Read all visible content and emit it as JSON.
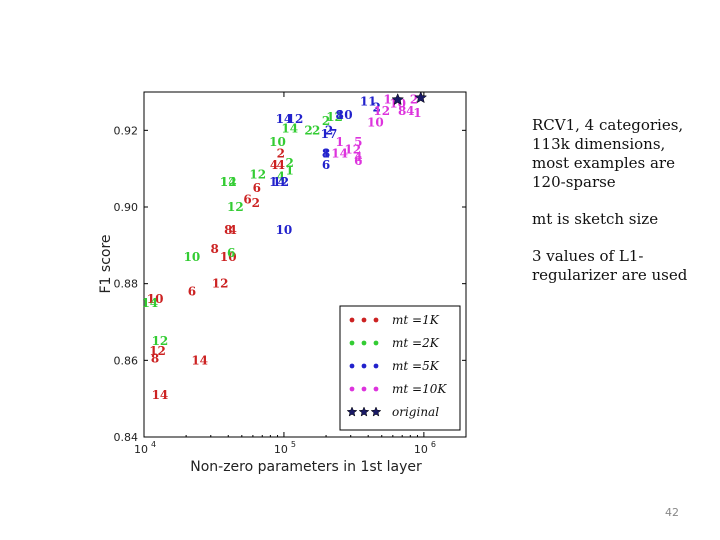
{
  "slide": {
    "notes": [
      "RCV1, 4 categories, 113k dimensions, most examples are 120-sparse",
      "mt is sketch size",
      "3 values of L1-regularizer are used"
    ],
    "page_number": "42"
  },
  "chart_data": {
    "type": "scatter",
    "title": "",
    "xlabel": "Non-zero parameters in 1st layer",
    "ylabel": "F1 score",
    "xscale": "log",
    "xlim": [
      10000,
      2000000
    ],
    "ylim": [
      0.84,
      0.93
    ],
    "x_ticks": [
      {
        "value": 10000,
        "label": "10"
      },
      {
        "value": 100000,
        "label": "10"
      },
      {
        "value": 1000000,
        "label": "10"
      }
    ],
    "x_tick_exponents": [
      "4",
      "5",
      "6"
    ],
    "y_ticks": [
      {
        "value": 0.84,
        "label": "0.84"
      },
      {
        "value": 0.86,
        "label": "0.86"
      },
      {
        "value": 0.88,
        "label": "0.88"
      },
      {
        "value": 0.9,
        "label": "0.90"
      },
      {
        "value": 0.92,
        "label": "0.92"
      }
    ],
    "legend_position": "bottom-right",
    "series": [
      {
        "name": "mt =1K",
        "color": "#cc2222",
        "marker": "dot",
        "points": [
          {
            "x": 12000,
            "y": 0.8605,
            "label": "8"
          },
          {
            "x": 12500,
            "y": 0.8625,
            "label": "12"
          },
          {
            "x": 13000,
            "y": 0.851,
            "label": "14"
          },
          {
            "x": 12000,
            "y": 0.876,
            "label": "10"
          },
          {
            "x": 25000,
            "y": 0.86,
            "label": "14"
          },
          {
            "x": 22000,
            "y": 0.878,
            "label": "6"
          },
          {
            "x": 35000,
            "y": 0.88,
            "label": "12"
          },
          {
            "x": 32000,
            "y": 0.889,
            "label": "8"
          },
          {
            "x": 40000,
            "y": 0.894,
            "label": "8"
          },
          {
            "x": 43000,
            "y": 0.894,
            "label": "4"
          },
          {
            "x": 40000,
            "y": 0.887,
            "label": "10"
          },
          {
            "x": 55000,
            "y": 0.902,
            "label": "6"
          },
          {
            "x": 63000,
            "y": 0.901,
            "label": "2"
          },
          {
            "x": 64000,
            "y": 0.905,
            "label": "6"
          },
          {
            "x": 85000,
            "y": 0.911,
            "label": "4"
          },
          {
            "x": 95000,
            "y": 0.914,
            "label": "2"
          },
          {
            "x": 95000,
            "y": 0.911,
            "label": "4"
          }
        ]
      },
      {
        "name": "mt =2K",
        "color": "#33cc33",
        "marker": "dot",
        "points": [
          {
            "x": 13000,
            "y": 0.865,
            "label": "12"
          },
          {
            "x": 11000,
            "y": 0.875,
            "label": "14"
          },
          {
            "x": 22000,
            "y": 0.887,
            "label": "10"
          },
          {
            "x": 42000,
            "y": 0.888,
            "label": "6"
          },
          {
            "x": 45000,
            "y": 0.9,
            "label": "12"
          },
          {
            "x": 40000,
            "y": 0.9065,
            "label": "12"
          },
          {
            "x": 40000,
            "y": 0.9065,
            "label": "14"
          },
          {
            "x": 65000,
            "y": 0.9085,
            "label": "12"
          },
          {
            "x": 90000,
            "y": 0.917,
            "label": "10"
          },
          {
            "x": 110000,
            "y": 0.9115,
            "label": "2"
          },
          {
            "x": 110000,
            "y": 0.9095,
            "label": "1"
          },
          {
            "x": 95000,
            "y": 0.908,
            "label": "4"
          },
          {
            "x": 110000,
            "y": 0.9205,
            "label": "14"
          },
          {
            "x": 150000,
            "y": 0.92,
            "label": "2"
          },
          {
            "x": 170000,
            "y": 0.92,
            "label": "2"
          },
          {
            "x": 200000,
            "y": 0.9225,
            "label": "2"
          },
          {
            "x": 230000,
            "y": 0.9235,
            "label": "12"
          }
        ]
      },
      {
        "name": "mt =5K",
        "color": "#2222cc",
        "marker": "dot",
        "points": [
          {
            "x": 90000,
            "y": 0.9065,
            "label": "14"
          },
          {
            "x": 95000,
            "y": 0.9065,
            "label": "12"
          },
          {
            "x": 100000,
            "y": 0.894,
            "label": "10"
          },
          {
            "x": 100000,
            "y": 0.923,
            "label": "14"
          },
          {
            "x": 120000,
            "y": 0.923,
            "label": "12"
          },
          {
            "x": 200000,
            "y": 0.914,
            "label": "8"
          },
          {
            "x": 200000,
            "y": 0.914,
            "label": "1"
          },
          {
            "x": 200000,
            "y": 0.911,
            "label": "6"
          },
          {
            "x": 210000,
            "y": 0.919,
            "label": "17"
          },
          {
            "x": 210000,
            "y": 0.92,
            "label": "2"
          },
          {
            "x": 250000,
            "y": 0.924,
            "label": "8"
          },
          {
            "x": 270000,
            "y": 0.924,
            "label": "10"
          },
          {
            "x": 400000,
            "y": 0.9275,
            "label": "11"
          },
          {
            "x": 460000,
            "y": 0.926,
            "label": "2"
          }
        ]
      },
      {
        "name": "mt =10K",
        "color": "#dd33dd",
        "marker": "dot",
        "points": [
          {
            "x": 250000,
            "y": 0.917,
            "label": "1"
          },
          {
            "x": 250000,
            "y": 0.914,
            "label": "14"
          },
          {
            "x": 310000,
            "y": 0.915,
            "label": "12"
          },
          {
            "x": 340000,
            "y": 0.917,
            "label": "5"
          },
          {
            "x": 340000,
            "y": 0.913,
            "label": "4"
          },
          {
            "x": 340000,
            "y": 0.912,
            "label": "6"
          },
          {
            "x": 450000,
            "y": 0.922,
            "label": "10"
          },
          {
            "x": 500000,
            "y": 0.925,
            "label": "12"
          },
          {
            "x": 550000,
            "y": 0.928,
            "label": "1"
          },
          {
            "x": 650000,
            "y": 0.927,
            "label": "10"
          },
          {
            "x": 700000,
            "y": 0.925,
            "label": "8"
          },
          {
            "x": 800000,
            "y": 0.925,
            "label": "4"
          },
          {
            "x": 850000,
            "y": 0.928,
            "label": "2"
          },
          {
            "x": 900000,
            "y": 0.9245,
            "label": "1"
          }
        ]
      },
      {
        "name": "original",
        "color": "#1a1a66",
        "marker": "star",
        "points": [
          {
            "x": 650000,
            "y": 0.928
          },
          {
            "x": 950000,
            "y": 0.9285
          }
        ]
      }
    ]
  }
}
